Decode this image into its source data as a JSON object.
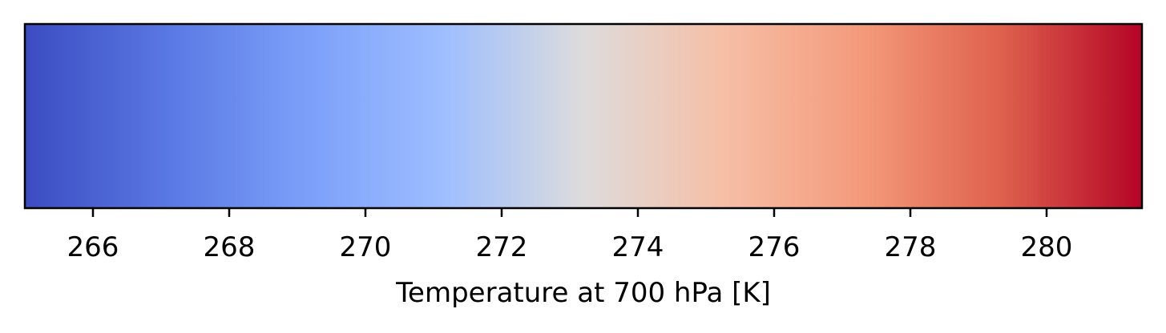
{
  "chart_data": {
    "type": "heatmap",
    "kind": "colorbar",
    "orientation": "horizontal",
    "colormap": "coolwarm",
    "xlabel": "Temperature at 700 hPa [K]",
    "xlim": [
      265.0,
      281.4
    ],
    "ticks": [
      266,
      268,
      270,
      272,
      274,
      276,
      278,
      280
    ],
    "tick_labels": [
      "266",
      "268",
      "270",
      "272",
      "274",
      "276",
      "278",
      "280"
    ],
    "color_stops": [
      {
        "fraction": 0.0,
        "color": "#3b4cc0"
      },
      {
        "fraction": 0.125,
        "color": "#5977e3"
      },
      {
        "fraction": 0.25,
        "color": "#7b9ff9"
      },
      {
        "fraction": 0.375,
        "color": "#9ebeff"
      },
      {
        "fraction": 0.5,
        "color": "#dddcdc"
      },
      {
        "fraction": 0.625,
        "color": "#f6bfa6"
      },
      {
        "fraction": 0.75,
        "color": "#f49a7b"
      },
      {
        "fraction": 0.875,
        "color": "#de604d"
      },
      {
        "fraction": 1.0,
        "color": "#b40426"
      }
    ],
    "frame_color": "#000000"
  }
}
